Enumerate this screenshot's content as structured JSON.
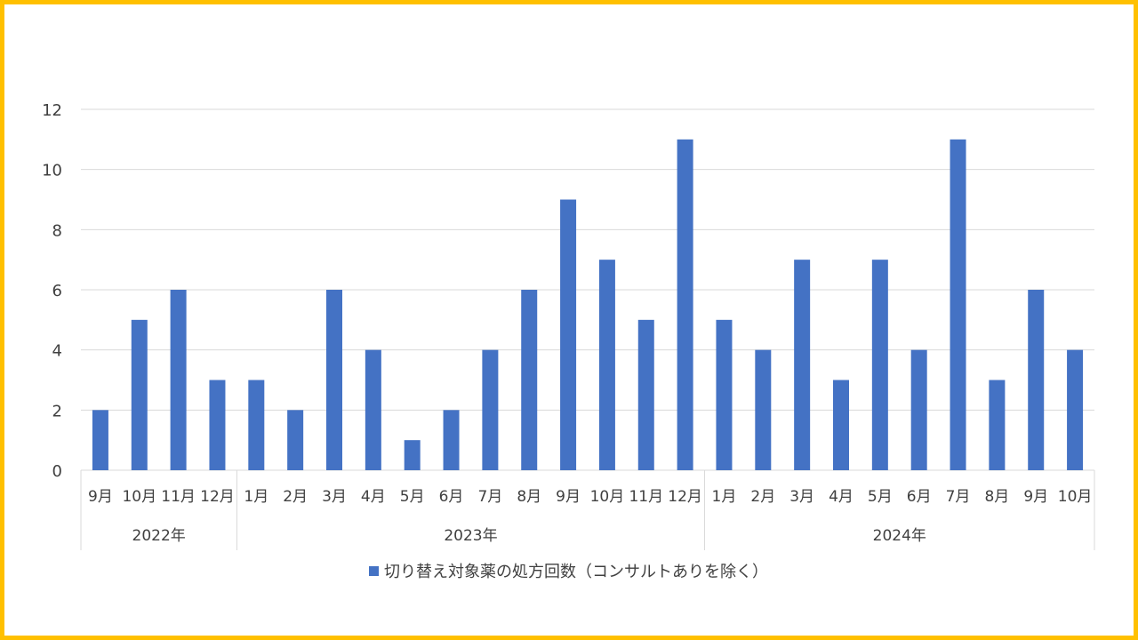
{
  "chart_data": {
    "type": "bar",
    "categories": [
      "9月",
      "10月",
      "11月",
      "12月",
      "1月",
      "2月",
      "3月",
      "4月",
      "5月",
      "6月",
      "7月",
      "8月",
      "9月",
      "10月",
      "11月",
      "12月",
      "1月",
      "2月",
      "3月",
      "4月",
      "5月",
      "6月",
      "7月",
      "8月",
      "9月",
      "10月"
    ],
    "groups": [
      {
        "label": "2022年",
        "count": 4
      },
      {
        "label": "2023年",
        "count": 12
      },
      {
        "label": "2024年",
        "count": 10
      }
    ],
    "series": [
      {
        "name": "切り替え対象薬の処方回数（コンサルトありを除く）",
        "values": [
          2,
          5,
          6,
          3,
          3,
          2,
          6,
          4,
          1,
          2,
          4,
          6,
          9,
          7,
          5,
          11,
          5,
          4,
          7,
          3,
          7,
          4,
          11,
          3,
          6,
          4
        ]
      }
    ],
    "ylim": [
      0,
      12
    ],
    "yticks": [
      0,
      2,
      4,
      6,
      8,
      10,
      12
    ],
    "grid": true,
    "legend": "bottom",
    "colors": {
      "bar": "#4472C4",
      "border": "#FFC000",
      "grid": "#D9D9D9",
      "text": "#404040"
    }
  }
}
